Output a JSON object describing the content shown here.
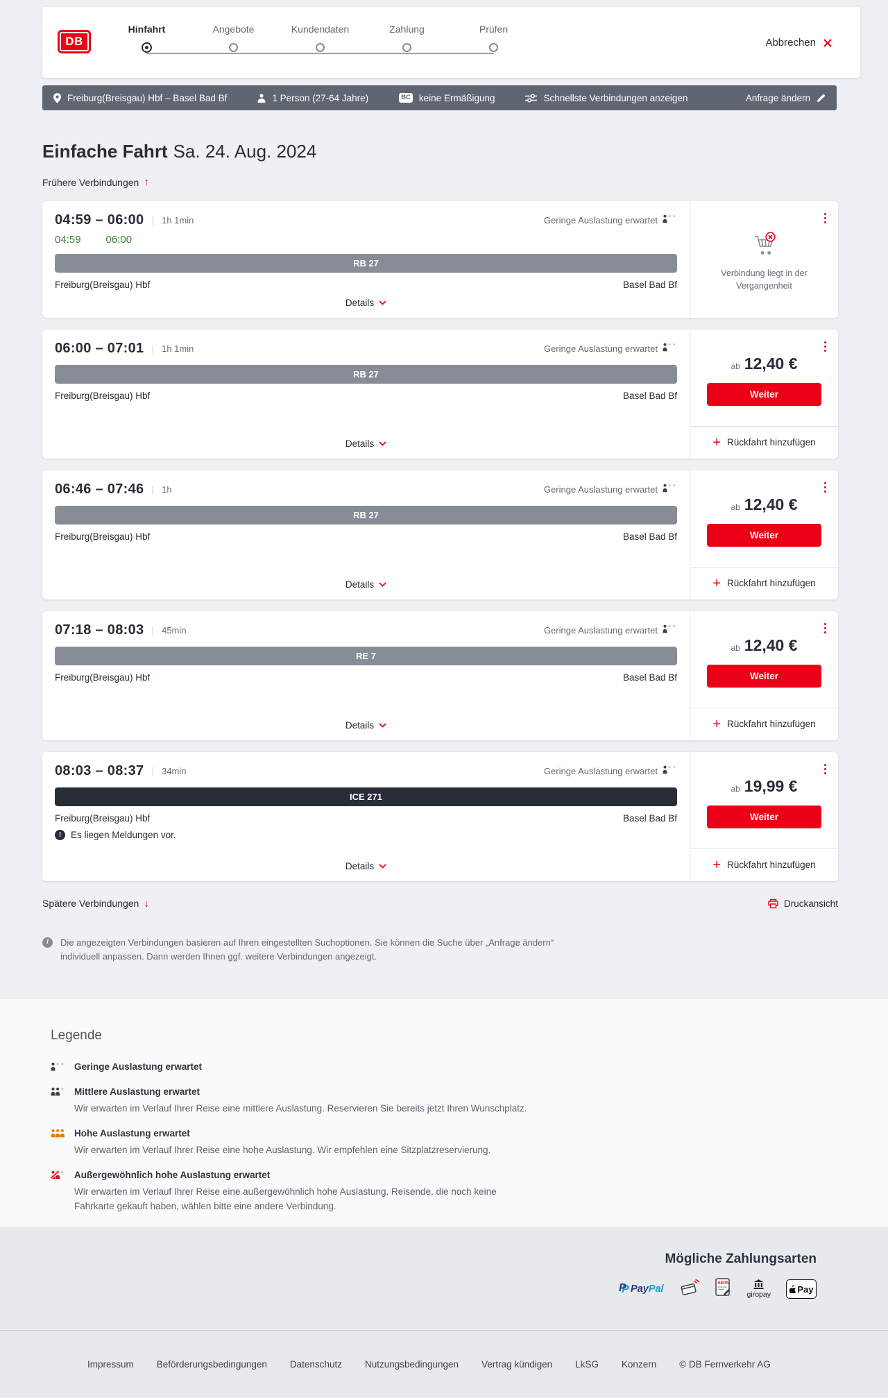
{
  "colors": {
    "brand_red": "#ec0016",
    "realtime_green": "#408335",
    "train_bar_gray": "#878c96",
    "ice_bar_dark": "#282d37",
    "occupancy_active": "#3c414b",
    "occupancy_inactive": "#c9cdd3",
    "occupancy_high": "#f07800",
    "occupancy_veryhigh": "#ec0016"
  },
  "header": {
    "logo": "DB",
    "steps": [
      {
        "label": "Hinfahrt",
        "active": true
      },
      {
        "label": "Angebote",
        "active": false
      },
      {
        "label": "Kundendaten",
        "active": false
      },
      {
        "label": "Zahlung",
        "active": false
      },
      {
        "label": "Prüfen",
        "active": false
      }
    ],
    "cancel_label": "Abbrechen"
  },
  "tripbar": {
    "route": "Freiburg(Breisgau) Hbf – Basel Bad Bf",
    "passengers": "1 Person (27-64 Jahre)",
    "bahncard_badge": "BC",
    "discount": "keine Ermäßigung",
    "filter": "Schnellste Verbindungen anzeigen",
    "change_request": "Anfrage ändern"
  },
  "results": {
    "title": "Einfache Fahrt",
    "date": "Sa. 24. Aug. 2024",
    "earlier_label": "Frühere Verbindungen",
    "later_label": "Spätere Verbindungen",
    "print_label": "Druckansicht",
    "labels": {
      "details": "Details",
      "from": "Freiburg(Breisgau) Hbf",
      "to": "Basel Bad Bf",
      "ab": "ab",
      "weiter": "Weiter",
      "add_return": "Rückfahrt hinzufügen",
      "past_note": "Verbindung liegt in der Vergangenheit",
      "messages_note": "Es liegen Meldungen vor."
    },
    "connections": [
      {
        "time": "04:59 – 06:00",
        "duration": "1h 1min",
        "occupancy": "Geringe Auslastung erwartet",
        "realtime_departure": "04:59",
        "realtime_arrival": "06:00",
        "train": "RB 27"
      },
      {
        "time": "06:00 – 07:01",
        "duration": "1h 1min",
        "occupancy": "Geringe Auslastung erwartet",
        "train": "RB 27",
        "price": "12,40 €"
      },
      {
        "time": "06:46 – 07:46",
        "duration": "1h",
        "occupancy": "Geringe Auslastung erwartet",
        "train": "RB 27",
        "price": "12,40 €"
      },
      {
        "time": "07:18 – 08:03",
        "duration": "45min",
        "occupancy": "Geringe Auslastung erwartet",
        "train": "RE 7",
        "price": "12,40 €"
      },
      {
        "time": "08:03 – 08:37",
        "duration": "34min",
        "occupancy": "Geringe Auslastung erwartet",
        "train": "ICE 271",
        "price": "19,99 €"
      }
    ],
    "info_note": "Die angezeigten Verbindungen basieren auf Ihren eingestellten Suchoptionen. Sie können die Suche über „Anfrage ändern“ individuell anpassen. Dann werden Ihnen ggf. weitere Verbindungen angezeigt."
  },
  "legend": {
    "title": "Legende",
    "items": [
      {
        "title": "Geringe Auslastung erwartet"
      },
      {
        "title": "Mittlere Auslastung erwartet",
        "description": "Wir erwarten im Verlauf Ihrer Reise eine mittlere Auslastung. Reservieren Sie bereits jetzt Ihren Wunschplatz."
      },
      {
        "title": "Hohe Auslastung erwartet",
        "description": "Wir erwarten im Verlauf Ihrer Reise eine hohe Auslastung. Wir empfehlen eine Sitzplatzreservierung."
      },
      {
        "title": "Außergewöhnlich hohe Auslastung erwartet",
        "description": "Wir erwarten im Verlauf Ihrer Reise eine außergewöhnlich hohe Auslastung. Reisende, die noch keine Fahrkarte gekauft haben, wählen bitte eine andere Verbindung."
      }
    ]
  },
  "payment": {
    "title": "Mögliche Zahlungsarten",
    "paypal_word_1": "Pay",
    "paypal_word_2": "Pal",
    "paypal_mark": "P",
    "sepa_label": "SEPA",
    "giropay_label": "giropay",
    "applepay_label": "Pay"
  },
  "footer": {
    "links": [
      "Impressum",
      "Beförderungsbedingungen",
      "Datenschutz",
      "Nutzungsbedingungen",
      "Vertrag kündigen",
      "LkSG",
      "Konzern"
    ],
    "copyright": "© DB Fernverkehr AG"
  }
}
